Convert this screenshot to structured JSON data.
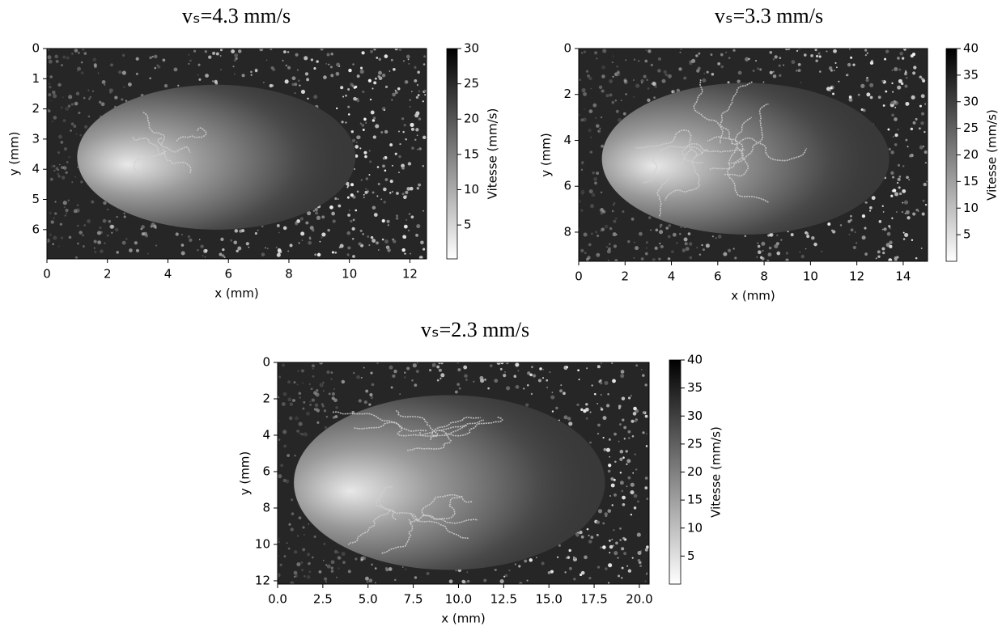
{
  "chart_data": [
    {
      "type": "image",
      "title": "vₛ=4.3 mm/s",
      "xlabel": "x (mm)",
      "ylabel": "y (mm)",
      "xlim": [
        0,
        12.55
      ],
      "ylim": [
        6.97,
        0
      ],
      "xticks": [
        0,
        2,
        4,
        6,
        8,
        10,
        12
      ],
      "yticks": [
        0,
        1,
        2,
        3,
        4,
        5,
        6
      ],
      "colorbar": {
        "label": "Vitesse (mm/s)",
        "lim": [
          0.2,
          30
        ],
        "ticks": [
          5,
          10,
          15,
          20,
          25,
          30
        ]
      }
    },
    {
      "type": "image",
      "title": "vₛ=3.3 mm/s",
      "xlabel": "x (mm)",
      "ylabel": "y (mm)",
      "xlim": [
        0,
        15.05
      ],
      "ylim": [
        9.27,
        0
      ],
      "xticks": [
        0,
        2,
        4,
        6,
        8,
        10,
        12,
        14
      ],
      "yticks": [
        0,
        2,
        4,
        6,
        8
      ],
      "colorbar": {
        "label": "Vitesse (mm/s)",
        "lim": [
          0,
          40
        ],
        "ticks": [
          5,
          10,
          15,
          20,
          25,
          30,
          35,
          40
        ]
      }
    },
    {
      "type": "image",
      "title": "vₛ=2.3 mm/s",
      "xlabel": "x (mm)",
      "ylabel": "y (mm)",
      "xlim": [
        0,
        20.54
      ],
      "ylim": [
        12.18,
        0
      ],
      "xticks": [
        {
          "value": 0,
          "label": "0.0"
        },
        {
          "value": 2.5,
          "label": "2.5"
        },
        {
          "value": 5,
          "label": "5.0"
        },
        {
          "value": 7.5,
          "label": "7.5"
        },
        {
          "value": 10,
          "label": "10.0"
        },
        {
          "value": 12.5,
          "label": "12.5"
        },
        {
          "value": 15,
          "label": "15.0"
        },
        {
          "value": 17.5,
          "label": "17.5"
        },
        {
          "value": 20,
          "label": "20.0"
        }
      ],
      "yticks": [
        0,
        2,
        4,
        6,
        8,
        10,
        12
      ],
      "colorbar": {
        "label": "Vitesse (mm/s)",
        "lim": [
          0,
          40
        ],
        "ticks": [
          5,
          10,
          15,
          20,
          25,
          30,
          35,
          40
        ]
      }
    }
  ]
}
